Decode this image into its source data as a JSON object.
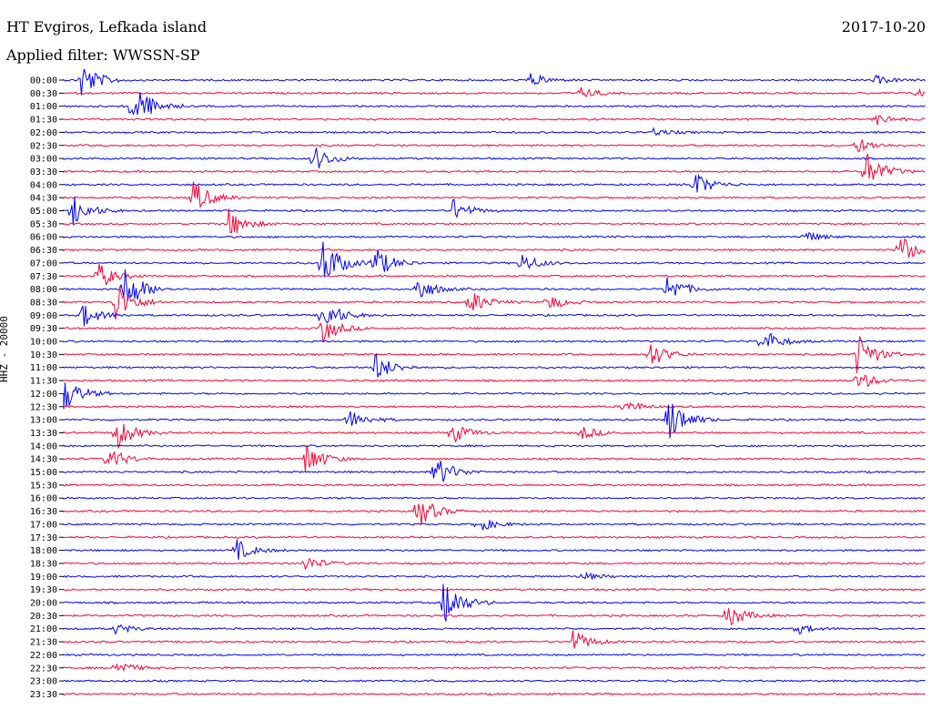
{
  "header": {
    "station": "HT Evgiros, Lefkada island",
    "date": "2017-10-20",
    "filter": "Applied filter: WWSSN-SP"
  },
  "chart_data": {
    "type": "line",
    "ylabel": "HHZ - 20000",
    "colors": [
      "#0000ff",
      "#ff0033"
    ],
    "row_labels": [
      "00:00",
      "00:30",
      "01:00",
      "01:30",
      "02:00",
      "02:30",
      "03:00",
      "03:30",
      "04:00",
      "04:30",
      "05:00",
      "05:30",
      "06:00",
      "06:30",
      "07:00",
      "07:30",
      "08:00",
      "08:30",
      "09:00",
      "09:30",
      "10:00",
      "10:30",
      "11:00",
      "11:30",
      "12:00",
      "12:30",
      "13:00",
      "13:30",
      "14:00",
      "14:30",
      "15:00",
      "15:30",
      "16:00",
      "16:30",
      "17:00",
      "17:30",
      "18:00",
      "18:30",
      "19:00",
      "19:30",
      "20:00",
      "20:30",
      "21:00",
      "21:30",
      "22:00",
      "22:30",
      "23:00",
      "23:30"
    ],
    "events": [
      {
        "row": 0,
        "x": 0.02,
        "amp": 2.2
      },
      {
        "row": 0,
        "x": 0.54,
        "amp": 0.8
      },
      {
        "row": 0,
        "x": 0.94,
        "amp": 0.5
      },
      {
        "row": 1,
        "x": 0.6,
        "amp": 0.6
      },
      {
        "row": 1,
        "x": 0.99,
        "amp": 0.6
      },
      {
        "row": 2,
        "x": 0.08,
        "amp": 3.0
      },
      {
        "row": 3,
        "x": 0.94,
        "amp": 0.7
      },
      {
        "row": 4,
        "x": 0.68,
        "amp": 0.5
      },
      {
        "row": 5,
        "x": 0.92,
        "amp": 0.9
      },
      {
        "row": 6,
        "x": 0.29,
        "amp": 1.5
      },
      {
        "row": 7,
        "x": 0.93,
        "amp": 2.2
      },
      {
        "row": 8,
        "x": 0.73,
        "amp": 1.6
      },
      {
        "row": 9,
        "x": 0.15,
        "amp": 2.0
      },
      {
        "row": 10,
        "x": 0.01,
        "amp": 1.8
      },
      {
        "row": 10,
        "x": 0.45,
        "amp": 1.4
      },
      {
        "row": 11,
        "x": 0.19,
        "amp": 1.8
      },
      {
        "row": 12,
        "x": 0.86,
        "amp": 0.6
      },
      {
        "row": 13,
        "x": 0.97,
        "amp": 1.8
      },
      {
        "row": 14,
        "x": 0.3,
        "amp": 3.0
      },
      {
        "row": 14,
        "x": 0.36,
        "amp": 2.0
      },
      {
        "row": 14,
        "x": 0.53,
        "amp": 1.2
      },
      {
        "row": 15,
        "x": 0.04,
        "amp": 1.5
      },
      {
        "row": 16,
        "x": 0.07,
        "amp": 3.0
      },
      {
        "row": 16,
        "x": 0.41,
        "amp": 1.5
      },
      {
        "row": 16,
        "x": 0.7,
        "amp": 1.7
      },
      {
        "row": 17,
        "x": 0.06,
        "amp": 2.5
      },
      {
        "row": 17,
        "x": 0.47,
        "amp": 1.5
      },
      {
        "row": 17,
        "x": 0.56,
        "amp": 1.0
      },
      {
        "row": 18,
        "x": 0.02,
        "amp": 1.5
      },
      {
        "row": 18,
        "x": 0.3,
        "amp": 2.0
      },
      {
        "row": 19,
        "x": 0.3,
        "amp": 1.6
      },
      {
        "row": 20,
        "x": 0.81,
        "amp": 1.5
      },
      {
        "row": 21,
        "x": 0.68,
        "amp": 1.5
      },
      {
        "row": 21,
        "x": 0.92,
        "amp": 2.5
      },
      {
        "row": 22,
        "x": 0.36,
        "amp": 1.8
      },
      {
        "row": 23,
        "x": 0.92,
        "amp": 1.2
      },
      {
        "row": 24,
        "x": 0.0,
        "amp": 2.0
      },
      {
        "row": 25,
        "x": 0.65,
        "amp": 0.8
      },
      {
        "row": 26,
        "x": 0.7,
        "amp": 3.0
      },
      {
        "row": 26,
        "x": 0.33,
        "amp": 1.2
      },
      {
        "row": 27,
        "x": 0.06,
        "amp": 2.0
      },
      {
        "row": 27,
        "x": 0.45,
        "amp": 1.2
      },
      {
        "row": 27,
        "x": 0.6,
        "amp": 0.8
      },
      {
        "row": 29,
        "x": 0.05,
        "amp": 1.5
      },
      {
        "row": 29,
        "x": 0.28,
        "amp": 2.0
      },
      {
        "row": 30,
        "x": 0.43,
        "amp": 2.0
      },
      {
        "row": 33,
        "x": 0.41,
        "amp": 2.0
      },
      {
        "row": 34,
        "x": 0.48,
        "amp": 0.9
      },
      {
        "row": 36,
        "x": 0.2,
        "amp": 1.2
      },
      {
        "row": 37,
        "x": 0.28,
        "amp": 0.9
      },
      {
        "row": 38,
        "x": 0.6,
        "amp": 0.5
      },
      {
        "row": 40,
        "x": 0.44,
        "amp": 3.0
      },
      {
        "row": 41,
        "x": 0.77,
        "amp": 1.5
      },
      {
        "row": 42,
        "x": 0.06,
        "amp": 0.6
      },
      {
        "row": 42,
        "x": 0.85,
        "amp": 0.6
      },
      {
        "row": 43,
        "x": 0.59,
        "amp": 1.4
      },
      {
        "row": 45,
        "x": 0.06,
        "amp": 0.9
      }
    ]
  }
}
